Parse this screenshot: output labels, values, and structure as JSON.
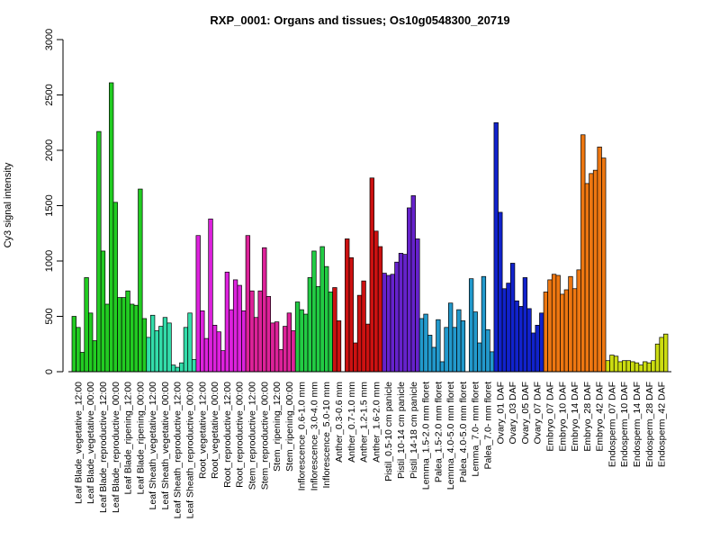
{
  "chart_data": {
    "type": "bar",
    "title": "RXP_0001: Organs and tissues; Os10g0548300_20719",
    "ylabel": "Cy3 signal intensity",
    "xlabel": "",
    "ylim": [
      0,
      3000
    ],
    "yticks": [
      0,
      500,
      1000,
      1500,
      2000,
      2500,
      3000
    ],
    "grid": false,
    "groups": [
      {
        "label": "Leaf Blade_vegetative_12:00",
        "color": "#22cc22",
        "values": [
          500,
          400,
          175
        ]
      },
      {
        "label": "Leaf Blade_vegetative_00:00",
        "color": "#22cc22",
        "values": [
          850,
          530,
          280
        ]
      },
      {
        "label": "Leaf Blade_reproductive_12:00",
        "color": "#22cc22",
        "values": [
          2170,
          1090,
          610
        ]
      },
      {
        "label": "Leaf Blade_reproductive_00:00",
        "color": "#22cc22",
        "values": [
          2610,
          1530,
          670
        ]
      },
      {
        "label": "Leaf Blade_ripening_12:00",
        "color": "#22cc22",
        "values": [
          670,
          730,
          610
        ]
      },
      {
        "label": "Leaf Blade_ripening_00:00",
        "color": "#22cc22",
        "values": [
          600,
          1650,
          480
        ]
      },
      {
        "label": "Leaf Sheath_vegetative_12:00",
        "color": "#33ddaa",
        "values": [
          310,
          510,
          370
        ]
      },
      {
        "label": "Leaf Sheath_vegetative_00:00",
        "color": "#33ddaa",
        "values": [
          410,
          490,
          440
        ]
      },
      {
        "label": "Leaf Sheath_reproductive_12:00",
        "color": "#33ddaa",
        "values": [
          60,
          40,
          80
        ]
      },
      {
        "label": "Leaf Sheath_reproductive_00:00",
        "color": "#33ddaa",
        "values": [
          400,
          530,
          110
        ]
      },
      {
        "label": "Root_vegetative_12:00",
        "color": "#dd22dd",
        "values": [
          1230,
          550,
          300
        ]
      },
      {
        "label": "Root_vegetative_00:00",
        "color": "#dd22dd",
        "values": [
          1380,
          420,
          360
        ]
      },
      {
        "label": "Root_reproductive_12:00",
        "color": "#dd22dd",
        "values": [
          190,
          900,
          560
        ]
      },
      {
        "label": "Root_reproductive_00:00",
        "color": "#dd22dd",
        "values": [
          830,
          780,
          550
        ]
      },
      {
        "label": "Stem_reproductive_12:00",
        "color": "#dd2299",
        "values": [
          1230,
          730,
          490
        ]
      },
      {
        "label": "Stem_reproductive_00:00",
        "color": "#dd2299",
        "values": [
          730,
          1120,
          680
        ]
      },
      {
        "label": "Stem_ripening_12:00",
        "color": "#dd2299",
        "values": [
          440,
          450,
          200
        ]
      },
      {
        "label": "Stem_ripening_00:00",
        "color": "#dd2299",
        "values": [
          410,
          530,
          370
        ]
      },
      {
        "label": "Inflorescence_0.6-1.0 mm",
        "color": "#22cc44",
        "values": [
          630,
          560,
          520
        ]
      },
      {
        "label": "Inflorescence_3.0-4.0 mm",
        "color": "#22cc44",
        "values": [
          850,
          1090,
          770
        ]
      },
      {
        "label": "Inflorescence_5.0-10 mm",
        "color": "#22cc44",
        "values": [
          1130,
          950,
          720
        ]
      },
      {
        "label": "Anther_0.3-0.6 mm",
        "color": "#cc1111",
        "values": [
          760,
          460,
          0
        ]
      },
      {
        "label": "Anther_0.7-1.0 mm",
        "color": "#cc1111",
        "values": [
          1200,
          1030,
          260
        ]
      },
      {
        "label": "Anther_1.2-1.5 mm",
        "color": "#cc1111",
        "values": [
          690,
          820,
          430
        ]
      },
      {
        "label": "Anther_1.6-2.0 mm",
        "color": "#cc1111",
        "values": [
          1750,
          1270,
          1130
        ]
      },
      {
        "label": "Pistil_0.5-10 cm panicle",
        "color": "#6622cc",
        "values": [
          890,
          870,
          880
        ]
      },
      {
        "label": "Pistil_10-14 cm panicle",
        "color": "#6622cc",
        "values": [
          990,
          1070,
          1060
        ]
      },
      {
        "label": "Pistil_14-18 cm panicle",
        "color": "#6622cc",
        "values": [
          1480,
          1590,
          1200
        ]
      },
      {
        "label": "Lemma_1.5-2.0 mm floret",
        "color": "#2299cc",
        "values": [
          480,
          520,
          330
        ]
      },
      {
        "label": "Palea_1.5-2.0 mm floret",
        "color": "#2299cc",
        "values": [
          220,
          470,
          90
        ]
      },
      {
        "label": "Lemma_4.0-5.0 mm floret",
        "color": "#2299cc",
        "values": [
          400,
          620,
          400
        ]
      },
      {
        "label": "Palea_4.0-5.0 mm floret",
        "color": "#2299cc",
        "values": [
          560,
          460,
          0
        ]
      },
      {
        "label": "Lemma_7.0- mm floret",
        "color": "#2299cc",
        "values": [
          840,
          540,
          260
        ]
      },
      {
        "label": "Palea_7.0- mm floret",
        "color": "#2299cc",
        "values": [
          860,
          380,
          180
        ]
      },
      {
        "label": "Ovary_01 DAF",
        "color": "#1122cc",
        "values": [
          2250,
          1440,
          750
        ]
      },
      {
        "label": "Ovary_03 DAF",
        "color": "#1122cc",
        "values": [
          800,
          980,
          640
        ]
      },
      {
        "label": "Ovary_05 DAF",
        "color": "#1122cc",
        "values": [
          590,
          850,
          570
        ]
      },
      {
        "label": "Ovary_07 DAF",
        "color": "#1122cc",
        "values": [
          350,
          420,
          530
        ]
      },
      {
        "label": "Embryo_07 DAF",
        "color": "#ee7711",
        "values": [
          720,
          830,
          880
        ]
      },
      {
        "label": "Embryo_10 DAF",
        "color": "#ee7711",
        "values": [
          870,
          700,
          740
        ]
      },
      {
        "label": "Embryo_14 DAF",
        "color": "#ee7711",
        "values": [
          860,
          750,
          920
        ]
      },
      {
        "label": "Embryo_28 DAF",
        "color": "#ee7711",
        "values": [
          2140,
          1700,
          1790
        ]
      },
      {
        "label": "Embryo_42 DAF",
        "color": "#ee7711",
        "values": [
          1820,
          2030,
          1930
        ]
      },
      {
        "label": "Endosperm_07 DAF",
        "color": "#ccdd11",
        "values": [
          100,
          150,
          140
        ]
      },
      {
        "label": "Endosperm_10 DAF",
        "color": "#ccdd11",
        "values": [
          90,
          100,
          100
        ]
      },
      {
        "label": "Endosperm_14 DAF",
        "color": "#ccdd11",
        "values": [
          90,
          80,
          60
        ]
      },
      {
        "label": "Endosperm_28 DAF",
        "color": "#ccdd11",
        "values": [
          90,
          80,
          100
        ]
      },
      {
        "label": "Endosperm_42 DAF",
        "color": "#ccdd11",
        "values": [
          250,
          310,
          340
        ]
      }
    ]
  }
}
